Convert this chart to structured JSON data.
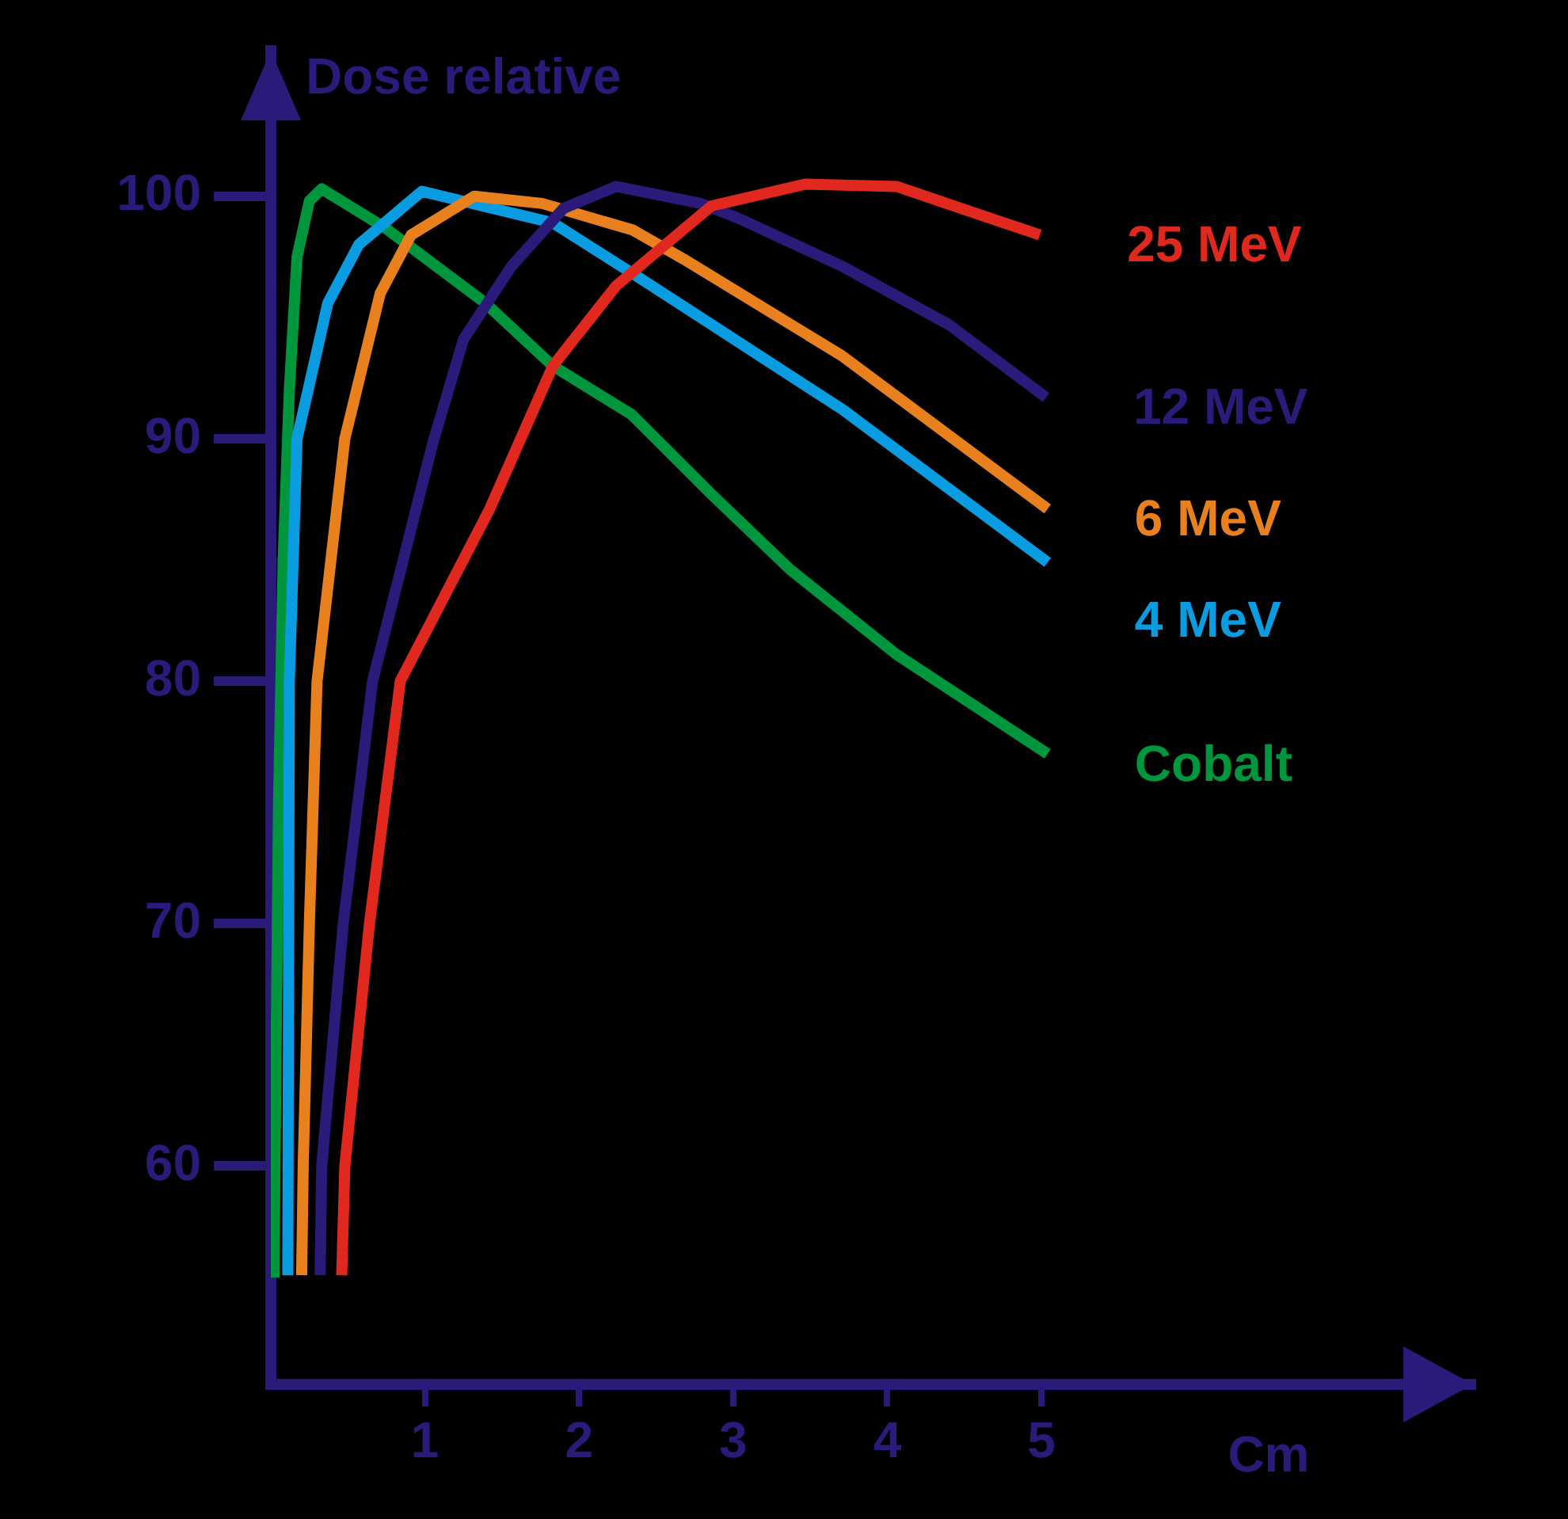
{
  "chart_data": {
    "type": "line",
    "ylabel": "Dose relative",
    "xlabel": "Cm",
    "xlim": [
      0,
      7.8
    ],
    "ylim": [
      51,
      106
    ],
    "xticks": [
      1,
      2,
      3,
      4,
      5
    ],
    "yticks": [
      60,
      70,
      80,
      90,
      100
    ],
    "marker": "none",
    "line_style": "solid",
    "series": [
      {
        "name": "25 MeV",
        "color": "#e0281f",
        "x": [
          0.46,
          0.48,
          0.64,
          0.84,
          1.42,
          1.83,
          2.24,
          2.86,
          3.47,
          4.06,
          4.57,
          4.99
        ],
        "values": [
          55.5,
          60,
          70,
          80,
          87.1,
          93.0,
          96.3,
          99.6,
          100.5,
          100.4,
          99.3,
          98.4
        ]
      },
      {
        "name": "12 MeV",
        "color": "#2b1a7a",
        "x": [
          0.32,
          0.33,
          0.47,
          0.66,
          1.05,
          1.25,
          1.56,
          1.9,
          2.24,
          2.79,
          3.03,
          3.71,
          4.4,
          5.03
        ],
        "values": [
          55.5,
          60,
          70,
          80,
          89.8,
          94.1,
          97.1,
          99.5,
          100.4,
          99.7,
          99.1,
          97.1,
          94.7,
          91.7
        ]
      },
      {
        "name": "6 MeV",
        "color": "#e8801e",
        "x": [
          0.2,
          0.21,
          0.25,
          0.3,
          0.48,
          0.71,
          0.91,
          1.32,
          1.76,
          2.35,
          2.68,
          3.71,
          5.04
        ],
        "values": [
          55.5,
          60,
          70,
          80,
          90,
          96,
          98.4,
          100,
          99.7,
          98.6,
          97.4,
          93.4,
          87.1
        ]
      },
      {
        "name": "4 MeV",
        "color": "#0a9ce0",
        "x": [
          0.11,
          0.12,
          0.17,
          0.37,
          0.57,
          0.98,
          1.83,
          2.35,
          2.86,
          3.71,
          5.04
        ],
        "values": [
          55.5,
          80,
          90,
          95.6,
          98,
          100.2,
          98.9,
          96.8,
          94.7,
          91.2,
          84.9
        ]
      },
      {
        "name": "Cobalt",
        "color": "#00963e",
        "x": [
          0.02,
          0.05,
          0.08,
          0.12,
          0.17,
          0.25,
          0.33,
          0.74,
          1.39,
          1.83,
          2.34,
          2.86,
          3.37,
          4.06,
          5.04
        ],
        "values": [
          55.4,
          75,
          85,
          92,
          97.5,
          99.8,
          100.3,
          98.7,
          95.6,
          93,
          91,
          87.7,
          84.6,
          81.1,
          77.0
        ]
      }
    ]
  }
}
